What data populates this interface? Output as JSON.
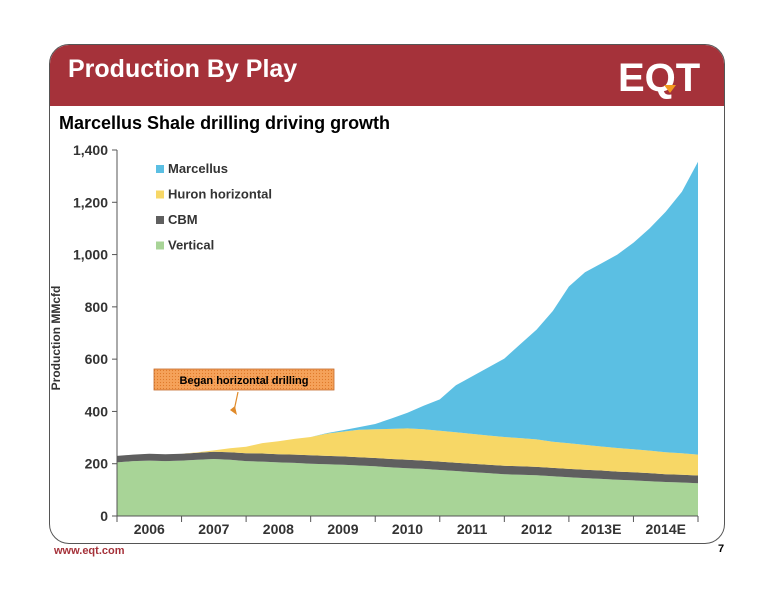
{
  "slide": {
    "title": "Production By Play",
    "subtitle": "Marcellus Shale drilling driving growth",
    "logo_text": "EQT",
    "footer_url": "www.eqt.com",
    "page_number": "7"
  },
  "colors": {
    "title_bar": "#a5323a",
    "marcellus": "#5bbfe3",
    "huron": "#f7d766",
    "cbm": "#5f5f5f",
    "vertical": "#a8d497",
    "callout": "#f5a25a"
  },
  "chart_data": {
    "type": "area",
    "stacked": true,
    "ylabel": "Production MMcfd",
    "xlabel": "",
    "ylim": [
      0,
      1400
    ],
    "yticks": [
      0,
      200,
      400,
      600,
      800,
      1000,
      1200,
      1400
    ],
    "ytick_labels": [
      "0",
      "200",
      "400",
      "600",
      "800",
      "1,000",
      "1,200",
      "1,400"
    ],
    "categories": [
      "2006",
      "2007",
      "2008",
      "2009",
      "2010",
      "2011",
      "2012",
      "2013E",
      "2014E"
    ],
    "x": [
      2006.0,
      2006.25,
      2006.5,
      2006.75,
      2007.0,
      2007.25,
      2007.5,
      2007.75,
      2008.0,
      2008.25,
      2008.5,
      2008.75,
      2009.0,
      2009.25,
      2009.5,
      2009.75,
      2010.0,
      2010.25,
      2010.5,
      2010.75,
      2011.0,
      2011.25,
      2011.5,
      2011.75,
      2012.0,
      2012.25,
      2012.5,
      2012.75,
      2013.0,
      2013.25,
      2013.5,
      2013.75,
      2014.0,
      2014.25,
      2014.5,
      2014.75,
      2015.0
    ],
    "series": [
      {
        "name": "Vertical",
        "values": [
          205,
          210,
          212,
          210,
          212,
          215,
          218,
          215,
          210,
          208,
          205,
          203,
          200,
          198,
          196,
          193,
          190,
          186,
          183,
          180,
          176,
          172,
          168,
          164,
          160,
          158,
          156,
          152,
          148,
          145,
          142,
          139,
          136,
          133,
          130,
          128,
          125
        ]
      },
      {
        "name": "CBM",
        "values": [
          25,
          25,
          26,
          26,
          26,
          27,
          28,
          29,
          30,
          31,
          31,
          32,
          32,
          32,
          32,
          32,
          32,
          32,
          32,
          32,
          32,
          32,
          32,
          32,
          32,
          32,
          32,
          32,
          32,
          32,
          32,
          31,
          31,
          31,
          30,
          30,
          30
        ]
      },
      {
        "name": "Huron horizontal",
        "values": [
          0,
          0,
          0,
          0,
          0,
          2,
          5,
          15,
          25,
          40,
          50,
          60,
          70,
          85,
          95,
          105,
          110,
          115,
          120,
          120,
          118,
          116,
          114,
          112,
          110,
          108,
          105,
          100,
          98,
          95,
          92,
          90,
          88,
          86,
          84,
          82,
          80
        ]
      },
      {
        "name": "Marcellus",
        "values": [
          0,
          0,
          0,
          0,
          0,
          0,
          0,
          0,
          0,
          0,
          0,
          0,
          0,
          2,
          5,
          10,
          20,
          40,
          60,
          90,
          120,
          180,
          220,
          260,
          300,
          360,
          420,
          500,
          600,
          660,
          700,
          740,
          790,
          850,
          920,
          1000,
          1120
        ]
      }
    ],
    "legend": [
      "Marcellus",
      "Huron horizontal",
      "CBM",
      "Vertical"
    ],
    "legend_position": "top-left",
    "annotation": {
      "text": "Began horizontal drilling",
      "points_to_x": 2007.75
    },
    "grid": false
  }
}
